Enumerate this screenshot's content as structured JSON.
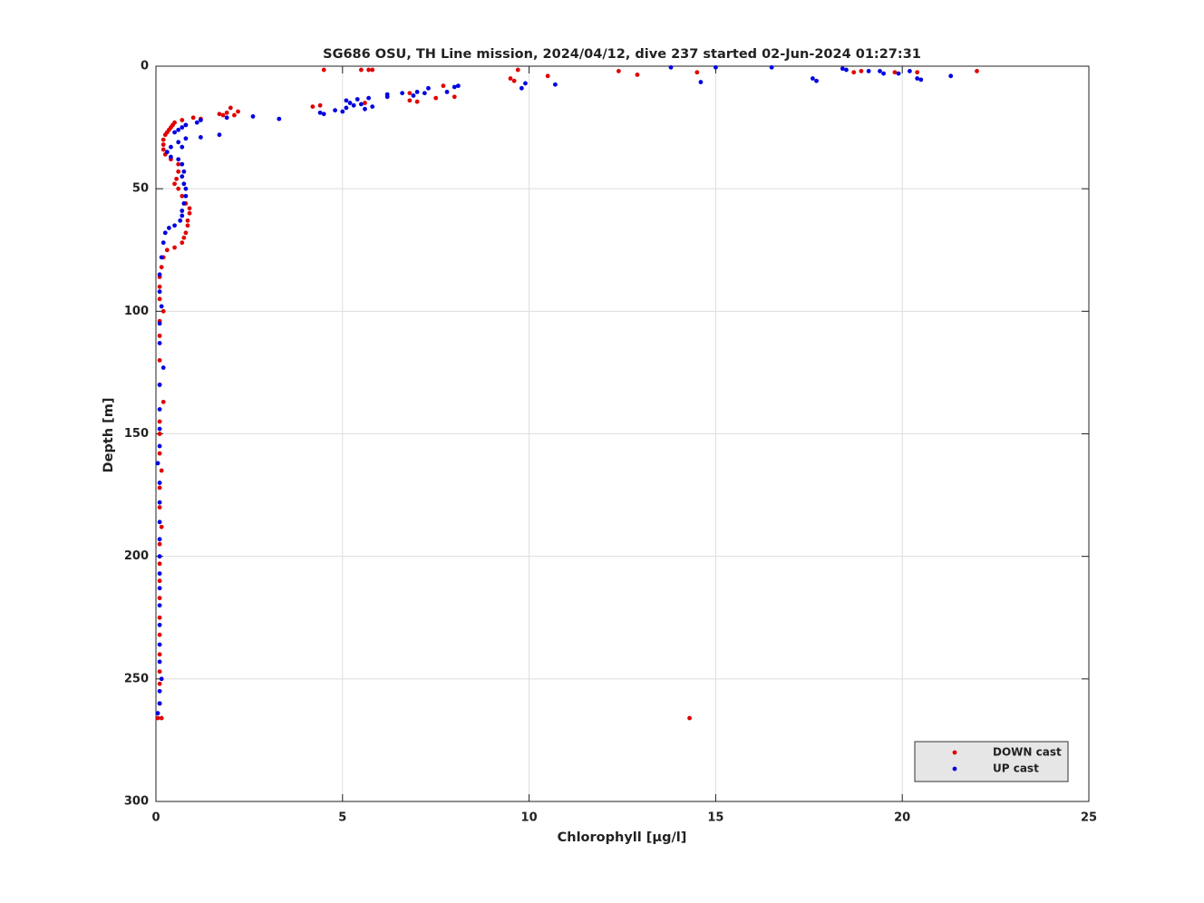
{
  "chart_data": {
    "type": "scatter",
    "title": "SG686 OSU, TH Line mission, 2024/04/12, dive 237 started 02-Jun-2024 01:27:31",
    "xlabel": "Chlorophyll [μg/l]",
    "ylabel": "Depth [m]",
    "xlim": [
      0,
      25
    ],
    "xticks": [
      0,
      5,
      10,
      15,
      20,
      25
    ],
    "ylim": [
      0,
      300
    ],
    "yticks": [
      0,
      50,
      100,
      150,
      200,
      250,
      300
    ],
    "y_reversed": true,
    "grid": true,
    "legend": "lower right",
    "series": [
      {
        "name": "DOWN cast",
        "color": "#e00000",
        "x": [
          4.5,
          5.5,
          5.7,
          5.8,
          9.7,
          12.4,
          12.9,
          14.5,
          18.7,
          18.9,
          19.8,
          20.4,
          22,
          9.5,
          9.6,
          10.5,
          7.7,
          8,
          7.5,
          7,
          6.8,
          6.8,
          5.6,
          4.4,
          4.2,
          2,
          2.2,
          1.9,
          1.7,
          1.8,
          2.1,
          1,
          1.2,
          0.7,
          0.5,
          0.45,
          0.4,
          0.35,
          0.3,
          0.25,
          0.2,
          0.2,
          0.2,
          0.25,
          0.4,
          0.6,
          0.6,
          0.55,
          0.5,
          0.6,
          0.7,
          0.8,
          0.9,
          0.9,
          0.85,
          0.85,
          0.8,
          0.75,
          0.7,
          0.5,
          0.3,
          0.2,
          0.15,
          0.1,
          0.1,
          0.1,
          0.2,
          0.1,
          0.1,
          0.1,
          0.1,
          0.2,
          0.1,
          0.1,
          0.1,
          0.15,
          0.1,
          0.1,
          0.15,
          0.1,
          0.1,
          0.1,
          0.1,
          0.1,
          0.1,
          0.1,
          0.1,
          0.1,
          0.1,
          0.15,
          0.05,
          14.3
        ],
        "y": [
          1.5,
          1.5,
          1.5,
          1.5,
          1.5,
          2,
          3.5,
          2.5,
          2.5,
          2,
          2.5,
          2.5,
          2,
          5,
          6,
          4,
          8,
          12.5,
          13,
          14.5,
          14,
          11,
          15,
          16,
          16.5,
          17,
          18.5,
          19,
          19.5,
          20,
          20,
          21,
          21.5,
          22,
          23,
          24,
          25,
          26,
          27,
          28,
          30,
          32,
          34,
          36,
          38,
          40,
          43,
          46,
          48,
          50,
          53,
          56,
          58,
          60,
          63,
          65,
          68,
          70,
          72,
          74,
          75,
          78,
          82,
          86,
          90,
          95,
          100,
          104,
          110,
          120,
          130,
          137,
          145,
          150,
          158,
          165,
          172,
          180,
          188,
          195,
          203,
          210,
          217,
          225,
          232,
          240,
          247,
          252,
          260,
          266,
          266,
          266
        ]
      },
      {
        "name": "UP cast",
        "color": "#0000e0",
        "x": [
          13.8,
          15,
          16.5,
          18.4,
          18.5,
          19.1,
          19.4,
          19.5,
          19.9,
          20.2,
          20.4,
          20.5,
          21.3,
          17.6,
          17.7,
          14.6,
          10.7,
          9.9,
          9.8,
          8.1,
          8,
          7.8,
          7.3,
          7.2,
          7,
          6.9,
          6.6,
          6.2,
          6.2,
          5.7,
          5.4,
          5.1,
          5.2,
          5.5,
          5.3,
          5.8,
          5.1,
          5.6,
          4.8,
          5,
          4.4,
          4.5,
          3.3,
          2.6,
          1.9,
          1.2,
          1.1,
          0.8,
          0.7,
          0.6,
          0.5,
          1.2,
          1.7,
          0.8,
          0.6,
          0.7,
          0.4,
          0.3,
          0.4,
          0.6,
          0.7,
          0.75,
          0.7,
          0.75,
          0.8,
          0.8,
          0.75,
          0.7,
          0.7,
          0.65,
          0.5,
          0.35,
          0.25,
          0.2,
          0.15,
          0.1,
          0.1,
          0.15,
          0.1,
          0.1,
          0.2,
          0.1,
          0.1,
          0.1,
          0.1,
          0.05,
          0.1,
          0.1,
          0.1,
          0.1,
          0.1,
          0.1,
          0.1,
          0.1,
          0.1,
          0.1,
          0.1,
          0.15,
          0.1,
          0.1,
          0.05
        ],
        "y": [
          0.5,
          0.5,
          0.5,
          1,
          1.5,
          2,
          2,
          3,
          3,
          2,
          5,
          5.5,
          4,
          5,
          6,
          6.5,
          7.5,
          7,
          9,
          8,
          8.5,
          10.5,
          9,
          11,
          10.5,
          12,
          11,
          11.5,
          12.5,
          13,
          13.5,
          14,
          15,
          15.5,
          16,
          16.5,
          17,
          17.5,
          18,
          18.5,
          19,
          19.5,
          21.5,
          20.5,
          21,
          22,
          23,
          24,
          25,
          26,
          27,
          29,
          28,
          29.5,
          31,
          33,
          33,
          35,
          37,
          38,
          40,
          43,
          45,
          48,
          50,
          53,
          56,
          59,
          61,
          63,
          65,
          66,
          68,
          72,
          78,
          85,
          92,
          98,
          105,
          113,
          123,
          130,
          140,
          148,
          155,
          162,
          170,
          178,
          186,
          193,
          200,
          207,
          213,
          220,
          228,
          236,
          243,
          250,
          255,
          260,
          264
        ]
      }
    ]
  }
}
